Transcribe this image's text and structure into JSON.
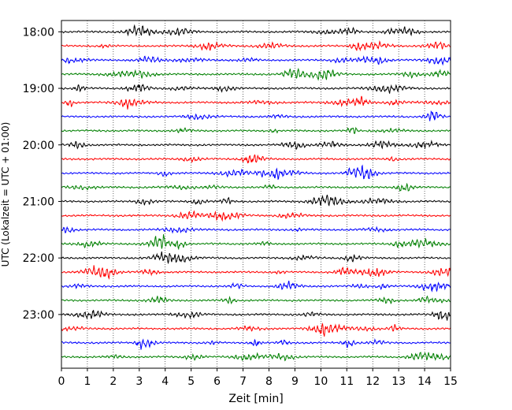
{
  "chart_data": {
    "type": "line",
    "xlabel": "Zeit  [min]",
    "ylabel": "UTC (Lokalzeit = UTC + 01:00)",
    "xlim": [
      0,
      15
    ],
    "xticks": [
      "0",
      "1",
      "2",
      "3",
      "4",
      "5",
      "6",
      "7",
      "8",
      "9",
      "10",
      "11",
      "12",
      "13",
      "14",
      "15"
    ],
    "yticks": [
      {
        "label": "18:00",
        "hour": 18
      },
      {
        "label": "19:00",
        "hour": 19
      },
      {
        "label": "20:00",
        "hour": 20
      },
      {
        "label": "21:00",
        "hour": 21
      },
      {
        "label": "22:00",
        "hour": 22
      },
      {
        "label": "23:00",
        "hour": 23
      }
    ],
    "ylim_hours": [
      17.8,
      23.95
    ],
    "trace_interval_minutes": 15,
    "first_trace_hour": 18,
    "trace_count": 24,
    "trace_colors": [
      "#000000",
      "#ff0000",
      "#0000ff",
      "#008000"
    ],
    "grid": "vertical-dotted"
  }
}
